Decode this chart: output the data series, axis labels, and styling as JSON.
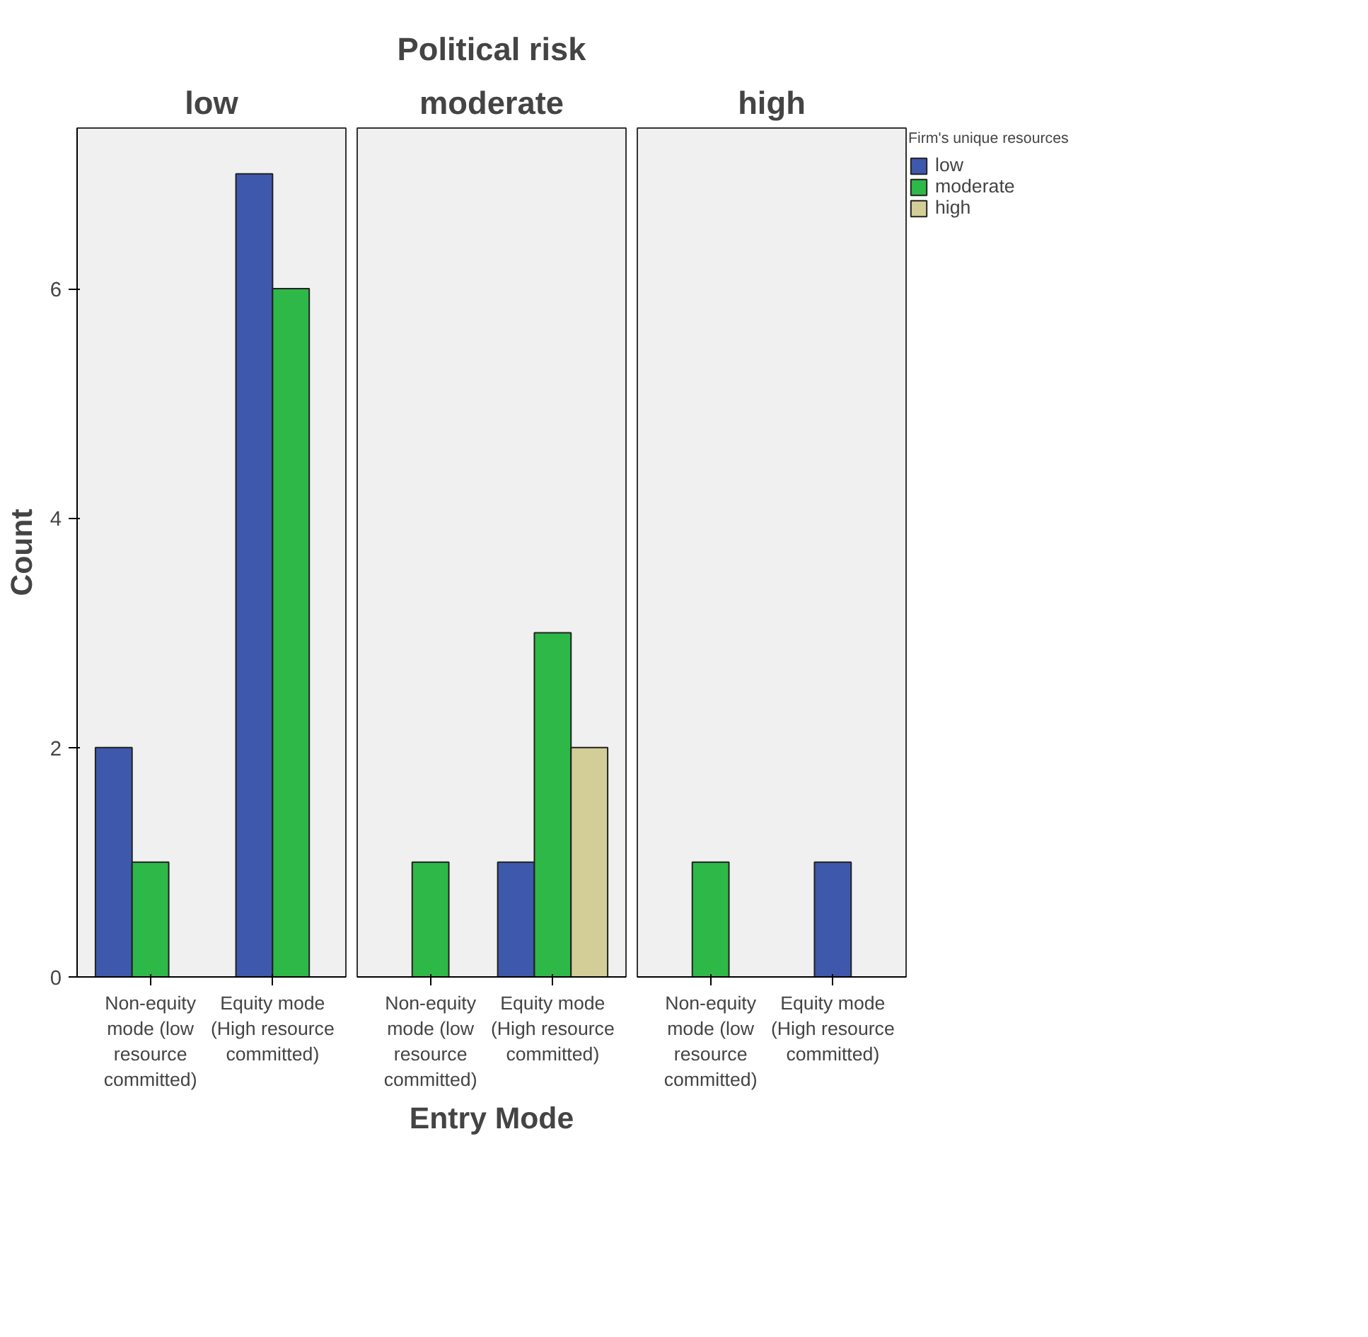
{
  "chart_data": [
    {
      "type": "bar",
      "subtitle": "low",
      "ylabel": "Count",
      "categories": [
        "Non-equity mode (low resource committed)",
        "Equity mode (High resource committed)"
      ],
      "ylim": [
        0,
        7.4
      ],
      "yticks": [
        0,
        2,
        4,
        6
      ],
      "series": [
        {
          "color": "#3e58ac",
          "values": [
            2,
            7
          ]
        },
        {
          "color": "#2eb848",
          "values": [
            1,
            6
          ]
        },
        {
          "color": "#d3ce97",
          "values": [
            0,
            null
          ]
        }
      ]
    },
    {
      "type": "bar",
      "title": "Political risk",
      "subtitle": "moderate",
      "xlabel": "Entry Mode",
      "categories": [
        "Non-equity mode (low resource committed)",
        "Equity mode (High resource committed)"
      ],
      "ylim": [
        0,
        7.4
      ],
      "tick_labels": "x",
      "series": [
        {
          "color": "#3e58ac",
          "values": [
            null,
            1
          ]
        },
        {
          "color": "#2eb848",
          "values": [
            1,
            3
          ]
        },
        {
          "color": "#d3ce97",
          "values": [
            null,
            2
          ]
        }
      ]
    },
    {
      "type": "bar",
      "subtitle": "high",
      "legend_title": "Firm's unique resources",
      "legend": "top right",
      "categories": [
        "Non-equity mode (low resource committed)",
        "Equity mode (High resource committed)"
      ],
      "ylim": [
        0,
        7.4
      ],
      "tick_labels": "x",
      "series": [
        {
          "name": "low",
          "color": "#3e58ac",
          "values": [
            null,
            1
          ]
        },
        {
          "name": "moderate",
          "color": "#2eb848",
          "values": [
            1,
            null
          ]
        },
        {
          "name": "high",
          "color": "#d3ce97",
          "values": [
            null,
            null
          ]
        }
      ]
    }
  ]
}
